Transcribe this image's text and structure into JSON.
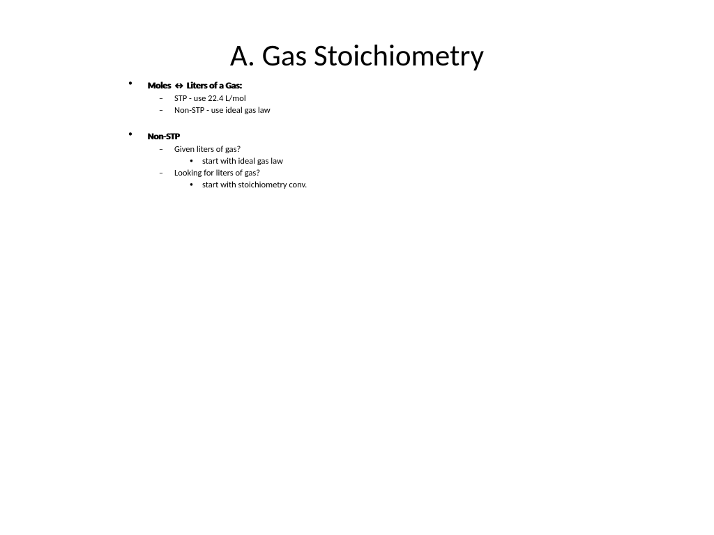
{
  "colors": {
    "background": "#ffffff",
    "text": "#000000"
  },
  "typography": {
    "title_fontsize": 43,
    "title_weight": 400,
    "body_fontsize": 12.5,
    "heading_fontsize": 13,
    "heading_weight": 700,
    "font_family": "Calibri"
  },
  "slide": {
    "title": "A. Gas Stoichiometry",
    "bullets": [
      {
        "label": "Moles ↔ Liters of a Gas:",
        "children": [
          {
            "text": "STP - use 22.4 L/mol"
          },
          {
            "text": "Non-STP - use ideal gas law"
          }
        ]
      },
      {
        "label": "Non-STP",
        "children": [
          {
            "text": "Given liters of gas?",
            "children": [
              {
                "text": "start with ideal gas law"
              }
            ]
          },
          {
            "text": "Looking for liters of gas?",
            "children": [
              {
                "text": "start with stoichiometry conv."
              }
            ]
          }
        ]
      }
    ]
  }
}
